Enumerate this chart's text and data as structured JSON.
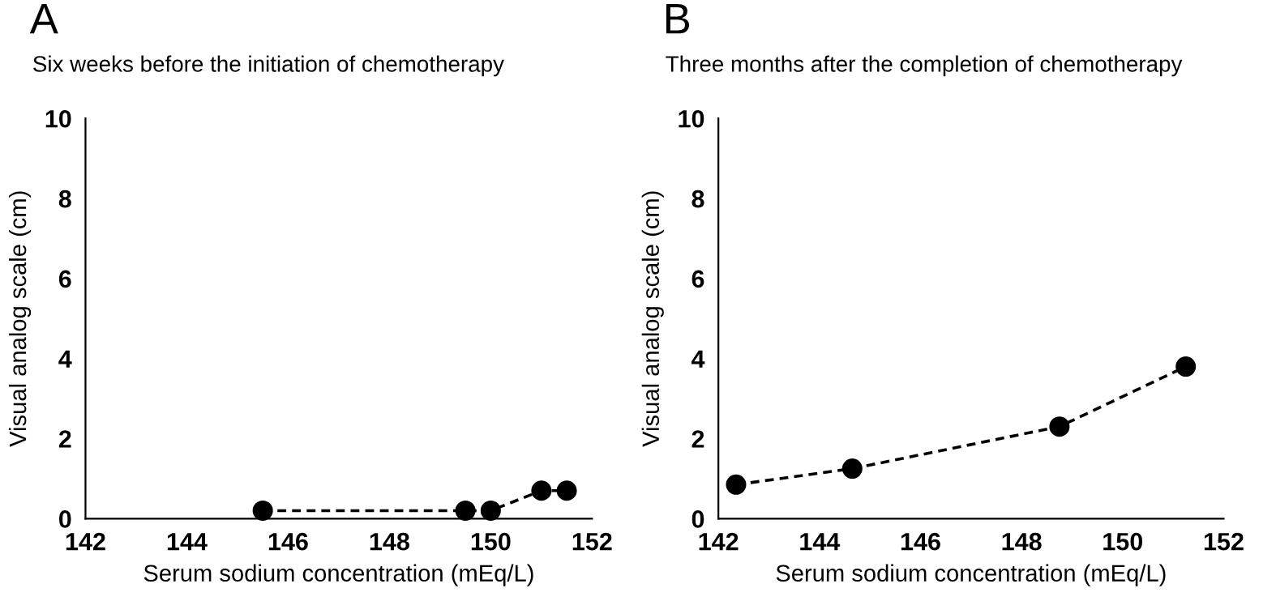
{
  "chart_data": [
    {
      "type": "line",
      "title": "A",
      "subtitle": "Six weeks before the initiation of chemotherapy",
      "xlabel": "Serum sodium concentration (mEq/L)",
      "ylabel": "Visual analog scale (cm)",
      "x": [
        145.5,
        149.5,
        150,
        151,
        151.5
      ],
      "values": [
        0.2,
        0.2,
        0.2,
        0.7,
        0.7
      ],
      "color": "#000000",
      "marker": "circle",
      "line_style": "dashed",
      "xlim": [
        142,
        152
      ],
      "xticks": [
        142,
        144,
        146,
        148,
        150,
        152
      ],
      "ylim": [
        0,
        10
      ],
      "yticks": [
        0,
        2,
        4,
        6,
        8,
        10
      ],
      "grid": false,
      "legend": false
    },
    {
      "type": "line",
      "title": "B",
      "subtitle": "Three months after the completion of chemotherapy",
      "xlabel": "Serum sodium concentration (mEq/L)",
      "ylabel": "Visual analog scale (cm)",
      "x": [
        142.35,
        144.65,
        148.75,
        151.25
      ],
      "values": [
        0.85,
        1.25,
        2.3,
        3.8
      ],
      "color": "#000000",
      "marker": "circle",
      "line_style": "dashed",
      "xlim": [
        142,
        152
      ],
      "xticks": [
        142,
        144,
        146,
        148,
        150,
        152
      ],
      "ylim": [
        0,
        10
      ],
      "yticks": [
        0,
        2,
        4,
        6,
        8,
        10
      ],
      "grid": false,
      "legend": false
    }
  ]
}
